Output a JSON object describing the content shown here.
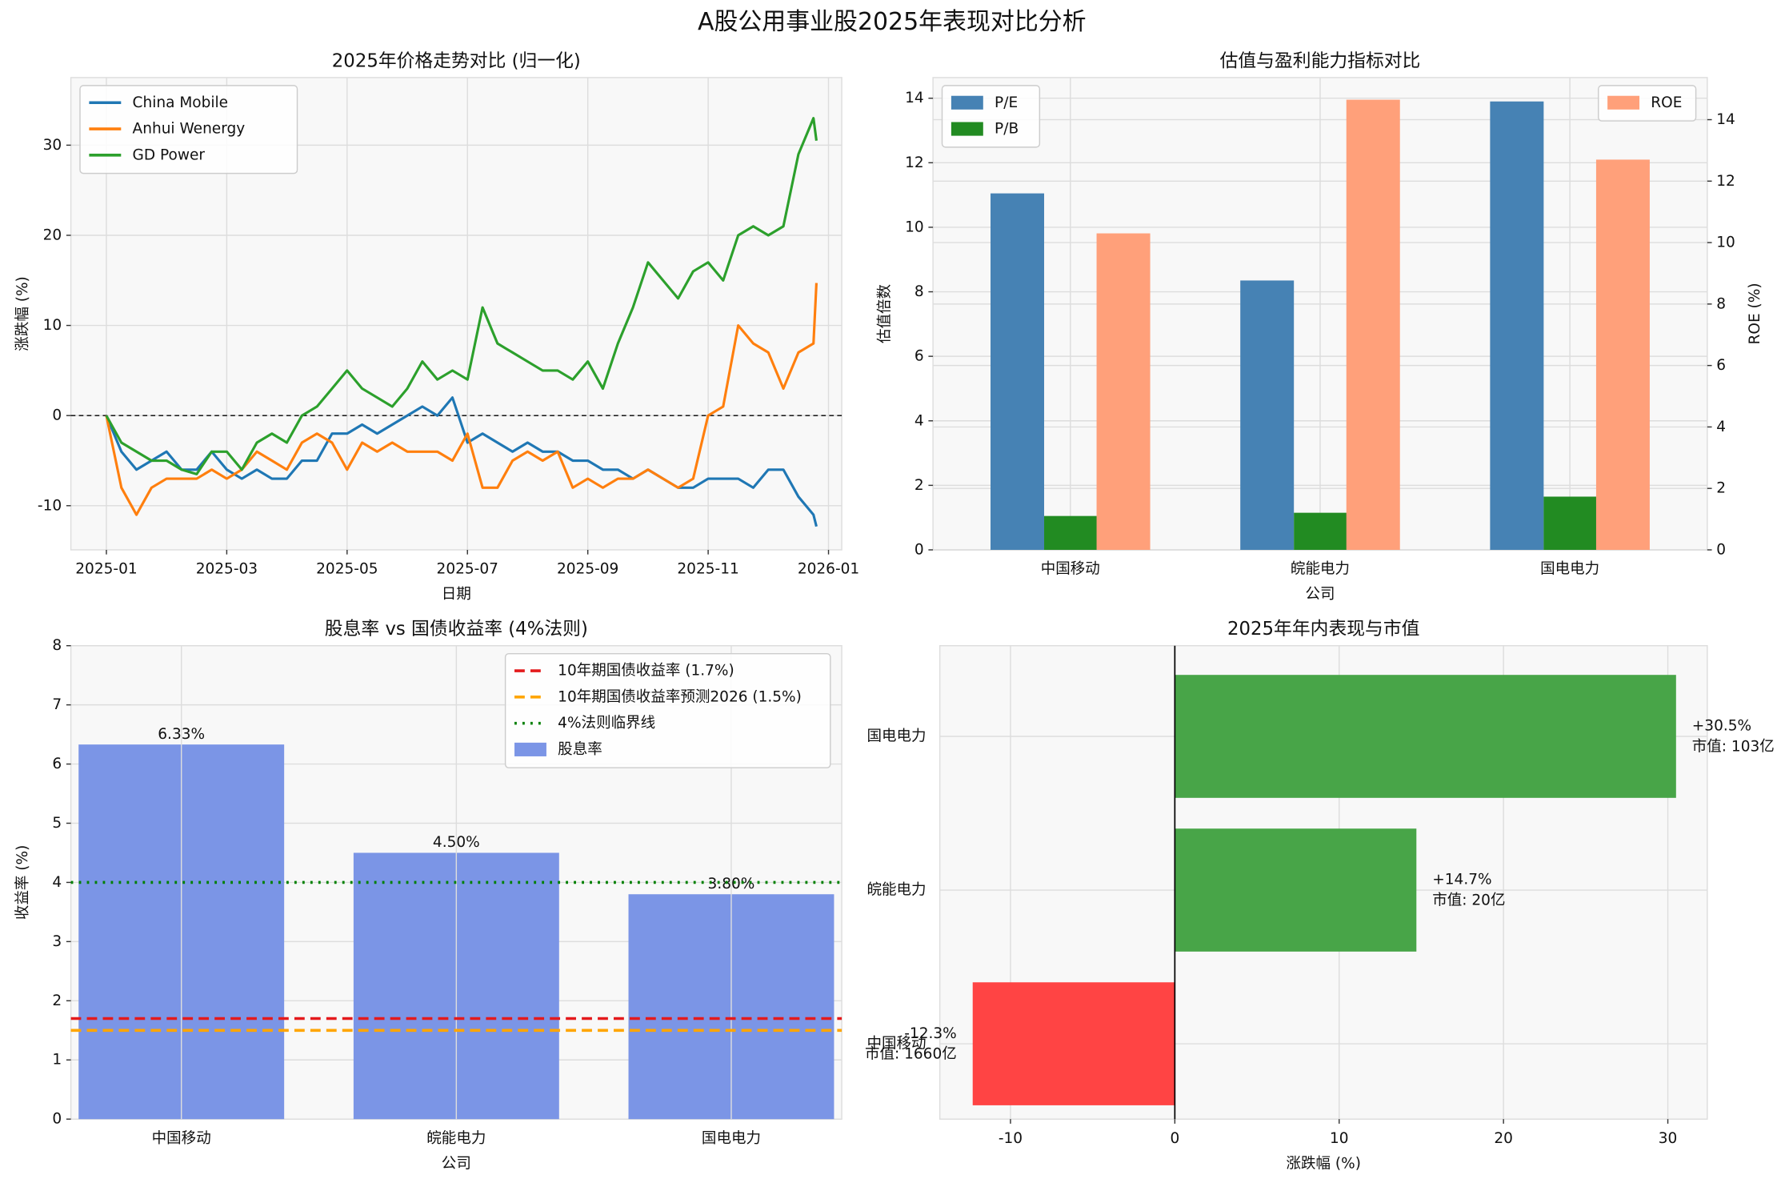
{
  "title": "A股公用事业股2025年表现对比分析",
  "chart_data": [
    {
      "type": "line",
      "title": "2025年价格走势对比 (归一化)",
      "xlabel": "日期",
      "ylabel": "涨跌幅 (%)",
      "x": [
        0,
        0.25,
        0.5,
        0.75,
        1,
        1.25,
        1.5,
        1.75,
        2,
        2.25,
        2.5,
        2.75,
        3,
        3.25,
        3.5,
        3.75,
        4,
        4.25,
        4.5,
        4.75,
        5,
        5.25,
        5.5,
        5.75,
        6,
        6.25,
        6.5,
        6.75,
        7,
        7.25,
        7.5,
        7.75,
        8,
        8.25,
        8.5,
        8.75,
        9,
        9.25,
        9.5,
        9.75,
        10,
        10.25,
        10.5,
        10.75,
        11,
        11.25,
        11.5,
        11.75,
        11.8
      ],
      "series": [
        {
          "name": "China Mobile",
          "color": "#1f77b4",
          "values": [
            0,
            -4,
            -6,
            -5,
            -4,
            -6,
            -6,
            -4,
            -6,
            -7,
            -6,
            -7,
            -7,
            -5,
            -5,
            -2,
            -2,
            -1,
            -2,
            -1,
            0,
            1,
            0,
            2,
            -3,
            -2,
            -3,
            -4,
            -3,
            -4,
            -4,
            -5,
            -5,
            -6,
            -6,
            -7,
            -6,
            -7,
            -8,
            -8,
            -7,
            -7,
            -7,
            -8,
            -6,
            -6,
            -9,
            -11,
            -12.3
          ]
        },
        {
          "name": "Anhui Wenergy",
          "color": "#ff7f0e",
          "values": [
            0,
            -8,
            -11,
            -8,
            -7,
            -7,
            -7,
            -6,
            -7,
            -6,
            -4,
            -5,
            -6,
            -3,
            -2,
            -3,
            -6,
            -3,
            -4,
            -3,
            -4,
            -4,
            -4,
            -5,
            -2,
            -8,
            -8,
            -5,
            -4,
            -5,
            -4,
            -8,
            -7,
            -8,
            -7,
            -7,
            -6,
            -7,
            -8,
            -7,
            0,
            1,
            10,
            8,
            7,
            3,
            7,
            8,
            14.7
          ]
        },
        {
          "name": "GD Power",
          "color": "#2ca02c",
          "values": [
            0,
            -3,
            -4,
            -5,
            -5,
            -6,
            -6.5,
            -4,
            -4,
            -6,
            -3,
            -2,
            -3,
            0,
            1,
            3,
            5,
            3,
            2,
            1,
            3,
            6,
            4,
            5,
            4,
            12,
            8,
            7,
            6,
            5,
            5,
            4,
            6,
            3,
            8,
            12,
            17,
            15,
            13,
            16,
            17,
            15,
            20,
            21,
            20,
            21,
            29,
            33,
            30.5
          ]
        }
      ],
      "xlim": [
        -0.59,
        12.22
      ],
      "xticks": [
        {
          "value": 0,
          "label": "2025-01"
        },
        {
          "value": 2,
          "label": "2025-03"
        },
        {
          "value": 4,
          "label": "2025-05"
        },
        {
          "value": 6,
          "label": "2025-07"
        },
        {
          "value": 8,
          "label": "2025-09"
        },
        {
          "value": 10,
          "label": "2025-11"
        },
        {
          "value": 12,
          "label": "2026-01"
        }
      ],
      "ylim": [
        -14.9,
        37.5
      ],
      "yticks": [
        -10,
        0,
        10,
        20,
        30
      ],
      "hlines": [
        {
          "value": 0,
          "color": "#000000"
        }
      ],
      "grid": true,
      "legend": "upper left"
    },
    {
      "type": "grouped_bar",
      "title": "估值与盈利能力指标对比",
      "xlabel": "公司",
      "ylabel": "估值倍数",
      "y2label": "ROE (%)",
      "categories": [
        "中国移动",
        "皖能电力",
        "国电电力"
      ],
      "series": [
        {
          "name": "P/E",
          "color": "#4682b4",
          "values": [
            11.05,
            8.35,
            13.9
          ]
        },
        {
          "name": "P/B",
          "color": "#228b22",
          "values": [
            1.05,
            1.15,
            1.65
          ]
        },
        {
          "name": "ROE",
          "color": "#ffa07a",
          "values": [
            10.3,
            14.65,
            12.7
          ],
          "axis": "y2"
        }
      ],
      "ylim": [
        0,
        14.64
      ],
      "yticks": [
        0,
        2,
        4,
        6,
        8,
        10,
        12,
        14
      ],
      "y2lim": [
        0,
        15.37
      ],
      "y2ticks": [
        0,
        2,
        4,
        6,
        8,
        10,
        12,
        14
      ],
      "grid": true,
      "legend": "upper left",
      "legend2": "upper right"
    },
    {
      "type": "bar",
      "title": "股息率 vs 国债收益率 (4%法则)",
      "xlabel": "公司",
      "ylabel": "收益率 (%)",
      "categories": [
        "中国移动",
        "皖能电力",
        "国电电力"
      ],
      "name": "股息率",
      "color": "#7b95e6",
      "values": [
        6.33,
        4.5,
        3.8
      ],
      "value_labels": [
        "6.33%",
        "4.50%",
        "3.80%"
      ],
      "hlines": [
        {
          "name": "10年期国债收益率 (1.7%)",
          "value": 1.7,
          "color": "#e41a1c",
          "style": "dashed"
        },
        {
          "name": "10年期国债收益率预测2026 (1.5%)",
          "value": 1.5,
          "color": "#ffa500",
          "style": "dashed"
        },
        {
          "name": "4%法则临界线",
          "value": 4,
          "color": "#008000",
          "style": "dotted"
        }
      ],
      "ylim": [
        0,
        8
      ],
      "yticks": [
        0,
        1,
        2,
        3,
        4,
        5,
        6,
        7,
        8
      ],
      "grid": true,
      "legend": "upper right"
    },
    {
      "type": "barh",
      "title": "2025年年内表现与市值",
      "xlabel": "涨跌幅 (%)",
      "categories": [
        "中国移动",
        "皖能电力",
        "国电电力"
      ],
      "values": [
        -12.3,
        14.7,
        30.5
      ],
      "value_labels": [
        "-12.3%",
        "+14.7%",
        "+30.5%"
      ],
      "annotations": [
        "市值: 1660亿",
        "市值: 20亿",
        "市值: 103亿"
      ],
      "colors": [
        "#ff4444",
        "#48a548",
        "#48a548"
      ],
      "xlim": [
        -14.3,
        32.4
      ],
      "xticks": [
        -10,
        0,
        10,
        20,
        30
      ],
      "grid": true
    }
  ]
}
